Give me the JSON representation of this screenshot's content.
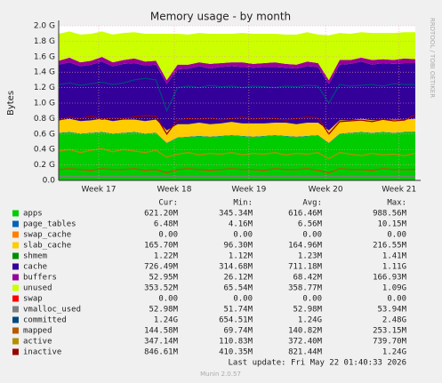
{
  "chart_data": {
    "type": "area",
    "title": "Memory usage - by month",
    "y_label": "Bytes",
    "side_text": "RRDTOOL / TOBI OETIKER",
    "grid": true,
    "xlim": [
      0,
      33
    ],
    "xticks": [
      {
        "value": 3.7,
        "label": "Week 17"
      },
      {
        "value": 10.7,
        "label": "Week 18"
      },
      {
        "value": 17.6,
        "label": "Week 19"
      },
      {
        "value": 24.7,
        "label": "Week 20"
      },
      {
        "value": 31.5,
        "label": "Week 21"
      }
    ],
    "ylim": [
      0,
      2.0
    ],
    "yticks": [
      {
        "value": 0,
        "label": "0.0"
      },
      {
        "value": 0.2,
        "label": "0.2 G"
      },
      {
        "value": 0.4,
        "label": "0.4 G"
      },
      {
        "value": 0.6,
        "label": "0.6 G"
      },
      {
        "value": 0.8,
        "label": "0.8 G"
      },
      {
        "value": 1.0,
        "label": "1.0 G"
      },
      {
        "value": 1.2,
        "label": "1.2 G"
      },
      {
        "value": 1.4,
        "label": "1.4 G"
      },
      {
        "value": 1.6,
        "label": "1.6 G"
      },
      {
        "value": 1.8,
        "label": "1.8 G"
      },
      {
        "value": 2.0,
        "label": "2.0 G"
      }
    ],
    "x": [
      0,
      1,
      2,
      3,
      4,
      5,
      6,
      7,
      8,
      9,
      10,
      11,
      12,
      13,
      14,
      15,
      16,
      17,
      18,
      19,
      20,
      21,
      22,
      23,
      24,
      25,
      26,
      27,
      28,
      29,
      30,
      31,
      32,
      33
    ],
    "stat_headers": [
      "Cur:",
      "Min:",
      "Avg:",
      "Max:"
    ],
    "series": [
      {
        "name": "apps",
        "color": "#00cc00",
        "draw": "stack",
        "stats": [
          "621.20M",
          "345.34M",
          "616.46M",
          "988.56M"
        ],
        "values": [
          0.61,
          0.62,
          0.6,
          0.61,
          0.62,
          0.6,
          0.61,
          0.62,
          0.6,
          0.61,
          0.48,
          0.55,
          0.56,
          0.57,
          0.56,
          0.57,
          0.58,
          0.57,
          0.56,
          0.57,
          0.58,
          0.57,
          0.56,
          0.57,
          0.58,
          0.48,
          0.6,
          0.61,
          0.62,
          0.61,
          0.62,
          0.61,
          0.62,
          0.62
        ]
      },
      {
        "name": "page_tables",
        "color": "#0066b3",
        "draw": "stack",
        "stats": [
          "6.48M",
          "4.16M",
          "6.56M",
          "10.15M"
        ],
        "values": [
          0.006,
          0.006,
          0.006,
          0.006,
          0.006,
          0.006,
          0.006,
          0.006,
          0.006,
          0.006,
          0.006,
          0.006,
          0.006,
          0.006,
          0.006,
          0.006,
          0.006,
          0.006,
          0.006,
          0.006,
          0.006,
          0.006,
          0.006,
          0.006,
          0.006,
          0.006,
          0.006,
          0.006,
          0.006,
          0.006,
          0.006,
          0.006,
          0.006,
          0.006
        ]
      },
      {
        "name": "swap_cache",
        "color": "#ff8000",
        "draw": "stack",
        "stats": [
          "0.00",
          "0.00",
          "0.00",
          "0.00"
        ],
        "values": [
          0,
          0,
          0,
          0,
          0,
          0,
          0,
          0,
          0,
          0,
          0,
          0,
          0,
          0,
          0,
          0,
          0,
          0,
          0,
          0,
          0,
          0,
          0,
          0,
          0,
          0,
          0,
          0,
          0,
          0,
          0,
          0,
          0,
          0
        ]
      },
      {
        "name": "slab_cache",
        "color": "#ffcc00",
        "draw": "stack",
        "stats": [
          "165.70M",
          "96.30M",
          "164.96M",
          "216.55M"
        ],
        "values": [
          0.16,
          0.17,
          0.16,
          0.16,
          0.17,
          0.16,
          0.17,
          0.16,
          0.16,
          0.17,
          0.16,
          0.17,
          0.16,
          0.17,
          0.16,
          0.16,
          0.17,
          0.16,
          0.17,
          0.16,
          0.16,
          0.17,
          0.16,
          0.17,
          0.16,
          0.16,
          0.17,
          0.16,
          0.17,
          0.16,
          0.16,
          0.17,
          0.16,
          0.17
        ]
      },
      {
        "name": "shmem",
        "color": "#008f00",
        "draw": "stack",
        "stats": [
          "1.22M",
          "1.12M",
          "1.23M",
          "1.41M"
        ],
        "values": [
          0.001,
          0.001,
          0.001,
          0.001,
          0.001,
          0.001,
          0.001,
          0.001,
          0.001,
          0.001,
          0.001,
          0.001,
          0.001,
          0.001,
          0.001,
          0.001,
          0.001,
          0.001,
          0.001,
          0.001,
          0.001,
          0.001,
          0.001,
          0.001,
          0.001,
          0.001,
          0.001,
          0.001,
          0.001,
          0.001,
          0.001,
          0.001,
          0.001,
          0.001
        ]
      },
      {
        "name": "cache",
        "color": "#330099",
        "draw": "stack",
        "stats": [
          "726.49M",
          "314.68M",
          "711.18M",
          "1.11G"
        ],
        "values": [
          0.72,
          0.73,
          0.71,
          0.72,
          0.74,
          0.71,
          0.72,
          0.73,
          0.72,
          0.71,
          0.6,
          0.71,
          0.72,
          0.73,
          0.72,
          0.73,
          0.72,
          0.73,
          0.72,
          0.73,
          0.72,
          0.71,
          0.72,
          0.73,
          0.72,
          0.6,
          0.72,
          0.73,
          0.74,
          0.72,
          0.73,
          0.72,
          0.73,
          0.72
        ]
      },
      {
        "name": "buffers",
        "color": "#990099",
        "draw": "stack",
        "stats": [
          "52.95M",
          "26.12M",
          "68.42M",
          "166.93M"
        ],
        "values": [
          0.05,
          0.06,
          0.05,
          0.05,
          0.06,
          0.05,
          0.05,
          0.06,
          0.05,
          0.05,
          0.05,
          0.06,
          0.05,
          0.05,
          0.06,
          0.05,
          0.05,
          0.06,
          0.05,
          0.05,
          0.06,
          0.05,
          0.05,
          0.06,
          0.05,
          0.05,
          0.06,
          0.05,
          0.05,
          0.06,
          0.05,
          0.05,
          0.06,
          0.05
        ]
      },
      {
        "name": "unused",
        "color": "#ccff00",
        "draw": "stack",
        "stats": [
          "353.52M",
          "65.54M",
          "358.77M",
          "1.09G"
        ],
        "values": [
          0.35,
          0.34,
          0.36,
          0.35,
          0.33,
          0.36,
          0.35,
          0.34,
          0.36,
          0.35,
          0.6,
          0.4,
          0.39,
          0.38,
          0.39,
          0.38,
          0.37,
          0.38,
          0.39,
          0.38,
          0.37,
          0.38,
          0.39,
          0.38,
          0.37,
          0.58,
          0.35,
          0.34,
          0.33,
          0.35,
          0.34,
          0.35,
          0.34,
          0.35
        ]
      },
      {
        "name": "swap",
        "color": "#ff0000",
        "draw": "stack",
        "stats": [
          "0.00",
          "0.00",
          "0.00",
          "0.00"
        ],
        "values": [
          0,
          0,
          0,
          0,
          0,
          0,
          0,
          0,
          0,
          0,
          0,
          0,
          0,
          0,
          0,
          0,
          0,
          0,
          0,
          0,
          0,
          0,
          0,
          0,
          0,
          0,
          0,
          0,
          0,
          0,
          0,
          0,
          0,
          0
        ]
      },
      {
        "name": "vmalloc_used",
        "color": "#808080",
        "draw": "line",
        "stats": [
          "52.98M",
          "51.74M",
          "52.98M",
          "53.94M"
        ],
        "values": [
          0.053,
          0.053,
          0.053,
          0.053,
          0.053,
          0.053,
          0.053,
          0.053,
          0.053,
          0.053,
          0.053,
          0.053,
          0.053,
          0.053,
          0.053,
          0.053,
          0.053,
          0.053,
          0.053,
          0.053,
          0.053,
          0.053,
          0.053,
          0.053,
          0.053,
          0.053,
          0.053,
          0.053,
          0.053,
          0.053,
          0.053,
          0.053,
          0.053,
          0.053
        ]
      },
      {
        "name": "committed",
        "color": "#00487d",
        "draw": "line",
        "stats": [
          "1.24G",
          "654.51M",
          "1.24G",
          "2.48G"
        ],
        "values": [
          1.24,
          1.26,
          1.23,
          1.25,
          1.27,
          1.24,
          1.26,
          1.3,
          1.32,
          1.3,
          0.9,
          1.2,
          1.22,
          1.2,
          1.23,
          1.21,
          1.22,
          1.2,
          1.22,
          1.21,
          1.2,
          1.22,
          1.21,
          1.23,
          1.22,
          1.0,
          1.24,
          1.22,
          1.23,
          1.24,
          1.22,
          1.25,
          1.24,
          1.24
        ]
      },
      {
        "name": "mapped",
        "color": "#b35a00",
        "draw": "line",
        "stats": [
          "144.58M",
          "69.74M",
          "140.82M",
          "253.15M"
        ],
        "values": [
          0.14,
          0.15,
          0.14,
          0.13,
          0.15,
          0.14,
          0.14,
          0.15,
          0.13,
          0.14,
          0.1,
          0.14,
          0.15,
          0.14,
          0.13,
          0.14,
          0.15,
          0.14,
          0.14,
          0.13,
          0.15,
          0.14,
          0.14,
          0.15,
          0.13,
          0.1,
          0.15,
          0.14,
          0.14,
          0.13,
          0.15,
          0.14,
          0.14,
          0.14
        ]
      },
      {
        "name": "active",
        "color": "#b38f00",
        "draw": "line",
        "stats": [
          "347.14M",
          "110.83M",
          "372.40M",
          "739.70M"
        ],
        "values": [
          0.38,
          0.4,
          0.36,
          0.39,
          0.41,
          0.37,
          0.4,
          0.38,
          0.36,
          0.39,
          0.3,
          0.34,
          0.36,
          0.33,
          0.35,
          0.34,
          0.36,
          0.33,
          0.35,
          0.34,
          0.36,
          0.33,
          0.35,
          0.34,
          0.36,
          0.28,
          0.36,
          0.34,
          0.32,
          0.35,
          0.33,
          0.34,
          0.32,
          0.35
        ]
      },
      {
        "name": "inactive",
        "color": "#990000",
        "draw": "line",
        "stats": [
          "846.61M",
          "410.35M",
          "821.44M",
          "1.24G"
        ],
        "values": [
          0.78,
          0.82,
          0.8,
          0.83,
          0.79,
          0.81,
          0.8,
          0.82,
          0.84,
          0.83,
          0.6,
          0.78,
          0.8,
          0.79,
          0.81,
          0.78,
          0.8,
          0.82,
          0.79,
          0.81,
          0.8,
          0.78,
          0.8,
          0.82,
          0.81,
          0.6,
          0.76,
          0.77,
          0.78,
          0.76,
          0.79,
          0.77,
          0.78,
          0.85
        ]
      }
    ],
    "last_update": "Last update: Fri May 22 01:40:33 2026",
    "footer": "Munin 2.0.57"
  }
}
